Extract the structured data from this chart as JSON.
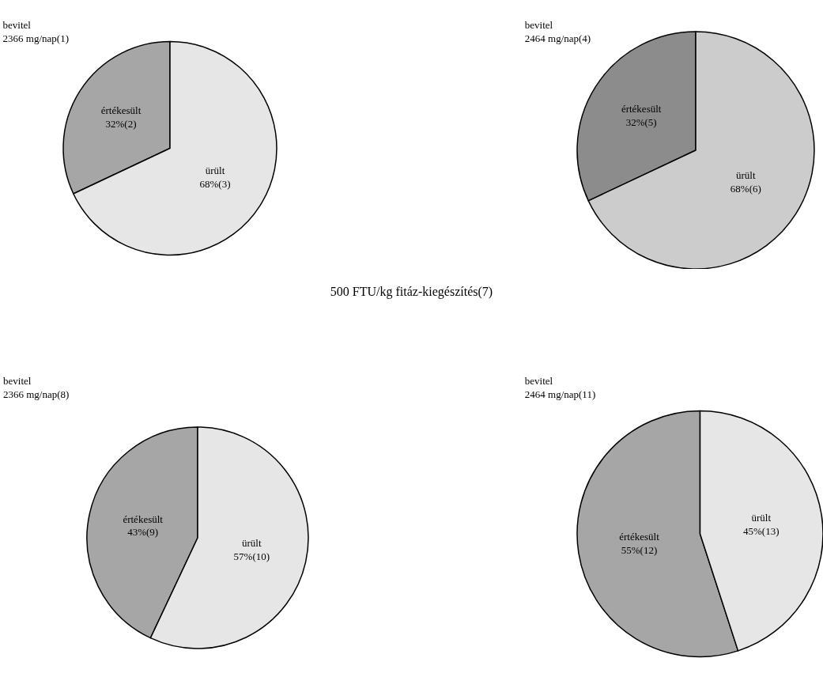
{
  "chart_data": [
    {
      "type": "pie",
      "title": "bevitel\n2366 mg/nap(1)",
      "categories": [
        "értékesült",
        "ürült"
      ],
      "values": [
        32,
        68
      ],
      "value_labels": [
        "32%(2)",
        "68%(3)"
      ],
      "colors": [
        "#a6a6a6",
        "#e6e6e6"
      ]
    },
    {
      "type": "pie",
      "title": "bevitel\n2464 mg/nap(4)",
      "categories": [
        "értékesült",
        "ürült"
      ],
      "values": [
        32,
        68
      ],
      "value_labels": [
        "32%(5)",
        "68%(6)"
      ],
      "colors": [
        "#8c8c8c",
        "#cccccc"
      ]
    },
    {
      "type": "pie",
      "title": "bevitel\n2366 mg/nap(8)",
      "categories": [
        "értékesült",
        "ürült"
      ],
      "values": [
        43,
        57
      ],
      "value_labels": [
        "43%(9)",
        "57%(10)"
      ],
      "colors": [
        "#a6a6a6",
        "#e6e6e6"
      ],
      "annotations": [
        "500 FTU/kg fitáz-kiegészítés(7)"
      ]
    },
    {
      "type": "pie",
      "title": "bevitel\n2464 mg/nap(11)",
      "categories": [
        "értékesült",
        "ürült"
      ],
      "values": [
        55,
        45
      ],
      "value_labels": [
        "55%(12)",
        "45%(13)"
      ],
      "colors": [
        "#a6a6a6",
        "#e6e6e6"
      ]
    }
  ]
}
